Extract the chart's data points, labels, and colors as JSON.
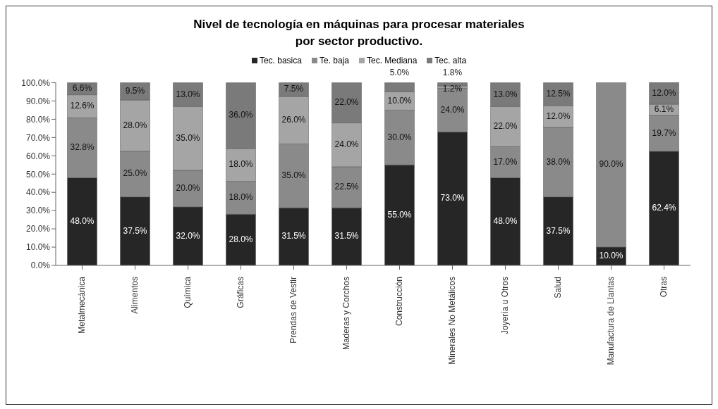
{
  "chart_data": {
    "type": "bar",
    "stacked": true,
    "title": "Nivel de tecnología en máquinas para procesar materiales\npor sector productivo.",
    "categories": [
      "Metalmecánica",
      "Alimentos",
      "Química",
      "Gráficas",
      "Prendas de Vestir",
      "Maderas y Corchos",
      "Construcción",
      "Minerales No Metálicos",
      "Joyería u Otros",
      "Salud",
      "Manufactura de Llantas",
      "Otras"
    ],
    "series": [
      {
        "name": "Tec. basica",
        "color": "#262626",
        "values": [
          48.0,
          37.5,
          32.0,
          28.0,
          31.5,
          31.5,
          55.0,
          73.0,
          48.0,
          37.5,
          10.0,
          62.4
        ],
        "value_labels": [
          "48.0%",
          "37.5%",
          "32.0%",
          "28.0%",
          "31.5%",
          "31.5%",
          "55.0%",
          "73.0%",
          "48.0%",
          "37.5%",
          "10.0%",
          "62.4%"
        ]
      },
      {
        "name": "Te. baja",
        "color": "#8a8a8a",
        "values": [
          32.8,
          25.0,
          20.0,
          18.0,
          35.0,
          22.5,
          30.0,
          24.0,
          17.0,
          38.0,
          90.0,
          19.7
        ],
        "value_labels": [
          "32.8%",
          "25.0%",
          "20.0%",
          "18.0%",
          "35.0%",
          "22.5%",
          "30.0%",
          "24.0%",
          "17.0%",
          "38.0%",
          "90.0%",
          "19.7%"
        ]
      },
      {
        "name": "Tec. Mediana",
        "color": "#a5a5a5",
        "values": [
          12.6,
          28.0,
          35.0,
          18.0,
          26.0,
          24.0,
          10.0,
          1.2,
          22.0,
          12.0,
          null,
          6.1
        ],
        "value_labels": [
          "12.6%",
          "28.0%",
          "35.0%",
          "18.0%",
          "26.0%",
          "24.0%",
          "10.0%",
          "1.2%",
          "22.0%",
          "12.0%",
          null,
          "6.1%"
        ]
      },
      {
        "name": "Tec. alta",
        "color": "#7a7a7a",
        "values": [
          6.6,
          9.5,
          13.0,
          36.0,
          7.5,
          22.0,
          5.0,
          1.8,
          13.0,
          12.5,
          null,
          12.0
        ],
        "value_labels": [
          "6.6%",
          "9.5%",
          "13.0%",
          "36.0%",
          "7.5%",
          "22.0%",
          "5.0%",
          "1.8%",
          "13.0%",
          "12.5%",
          null,
          "12.0%"
        ]
      }
    ],
    "ylim": [
      0,
      100.2
    ],
    "yticks": [
      {
        "value": 0,
        "label": "0.0%"
      },
      {
        "value": 10,
        "label": "10.0%"
      },
      {
        "value": 20,
        "label": "20.0%"
      },
      {
        "value": 30,
        "label": "30.0%"
      },
      {
        "value": 40,
        "label": "40.0%"
      },
      {
        "value": 50,
        "label": "50.0%"
      },
      {
        "value": 60,
        "label": "60.0%"
      },
      {
        "value": 70,
        "label": "70.0%"
      },
      {
        "value": 80,
        "label": "80.0%"
      },
      {
        "value": 90,
        "label": "90.0%"
      },
      {
        "value": 100,
        "label": "100.0%"
      }
    ],
    "grid": false,
    "legend": "top"
  }
}
